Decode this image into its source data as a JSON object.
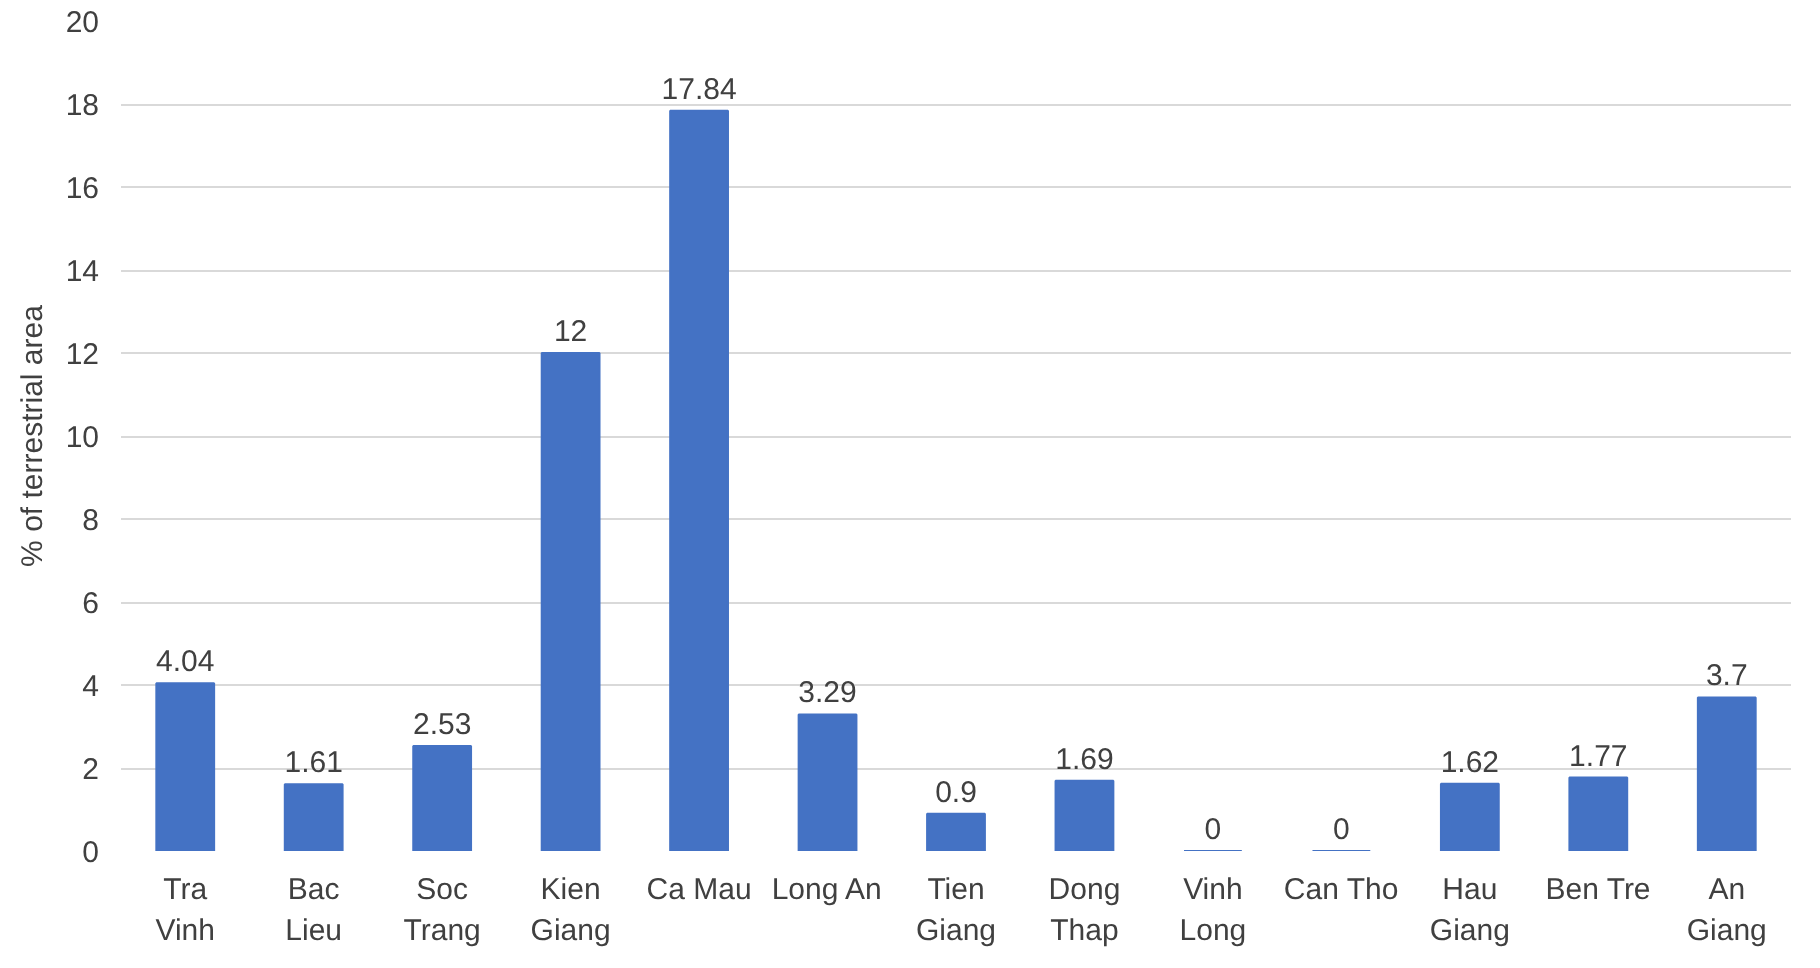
{
  "chart_data": {
    "type": "bar",
    "ylabel": "% of terrestrial area",
    "categories": [
      "Tra Vinh",
      "Bac Lieu",
      "Soc Trang",
      "Kien Giang",
      "Ca Mau",
      "Long An",
      "Tien Giang",
      "Dong Thap",
      "Vinh Long",
      "Can Tho",
      "Hau Giang",
      "Ben Tre",
      "An Giang"
    ],
    "values": [
      4.04,
      1.61,
      2.53,
      12,
      17.84,
      3.29,
      0.9,
      1.69,
      0,
      0,
      1.62,
      1.77,
      3.7
    ],
    "color": "#4472c4",
    "ylim": [
      0,
      20
    ],
    "yticks": [
      0,
      2,
      4,
      6,
      8,
      10,
      12,
      14,
      16,
      18,
      20
    ],
    "grid": "y",
    "data_labels": true
  }
}
